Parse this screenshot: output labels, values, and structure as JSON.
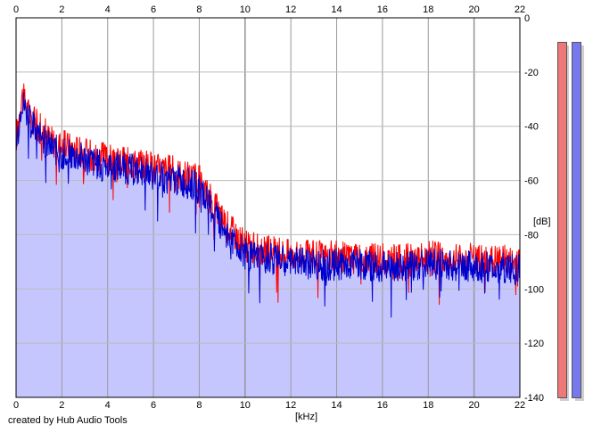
{
  "chart_data": {
    "type": "area",
    "xlabel": "[kHz]",
    "ylabel": "[dB]",
    "xlim": [
      0,
      22
    ],
    "ylim": [
      -140,
      0
    ],
    "x_ticks": [
      "0",
      "2",
      "4",
      "6",
      "8",
      "10",
      "12",
      "14",
      "16",
      "18",
      "20",
      "22"
    ],
    "y_ticks": [
      "0",
      "-20",
      "-40",
      "-60",
      "-80",
      "-100",
      "-120",
      "-140"
    ],
    "grid": true,
    "series": [
      {
        "color": "#ff0000",
        "x": [
          0,
          0.25,
          0.5,
          0.75,
          1,
          1.5,
          2,
          2.5,
          3,
          3.5,
          4,
          4.5,
          5,
          5.5,
          6,
          6.5,
          7,
          7.5,
          8,
          8.5,
          9,
          9.5,
          10,
          11,
          12,
          13,
          14,
          15,
          16,
          17,
          18,
          19,
          20,
          21,
          22
        ],
        "y": [
          -45,
          -28,
          -34,
          -38,
          -40,
          -45,
          -47,
          -48,
          -50,
          -51,
          -52,
          -53,
          -53,
          -54,
          -55,
          -56,
          -57,
          -58,
          -60,
          -67,
          -74,
          -79,
          -84,
          -86,
          -87,
          -88,
          -88,
          -89,
          -89,
          -89,
          -88,
          -89,
          -89,
          -89,
          -90
        ]
      },
      {
        "color": "#0000cc",
        "x": [
          0,
          0.25,
          0.5,
          0.75,
          1,
          1.5,
          2,
          2.5,
          3,
          3.5,
          4,
          4.5,
          5,
          5.5,
          6,
          6.5,
          7,
          7.5,
          8,
          8.5,
          9,
          9.5,
          10,
          11,
          12,
          13,
          14,
          15,
          16,
          17,
          18,
          19,
          20,
          21,
          22
        ],
        "y": [
          -48,
          -30,
          -36,
          -40,
          -43,
          -48,
          -50,
          -51,
          -52,
          -54,
          -55,
          -55,
          -56,
          -57,
          -58,
          -59,
          -60,
          -61,
          -63,
          -70,
          -77,
          -82,
          -87,
          -89,
          -90,
          -91,
          -91,
          -91,
          -92,
          -92,
          -91,
          -91,
          -92,
          -92,
          -93
        ]
      }
    ]
  },
  "level_meters": {
    "left_color": "#ee7777",
    "right_color": "#7777ee",
    "left_level": 1.0,
    "right_level": 1.0
  },
  "footer": {
    "credit": "created by Hub Audio Tools"
  }
}
